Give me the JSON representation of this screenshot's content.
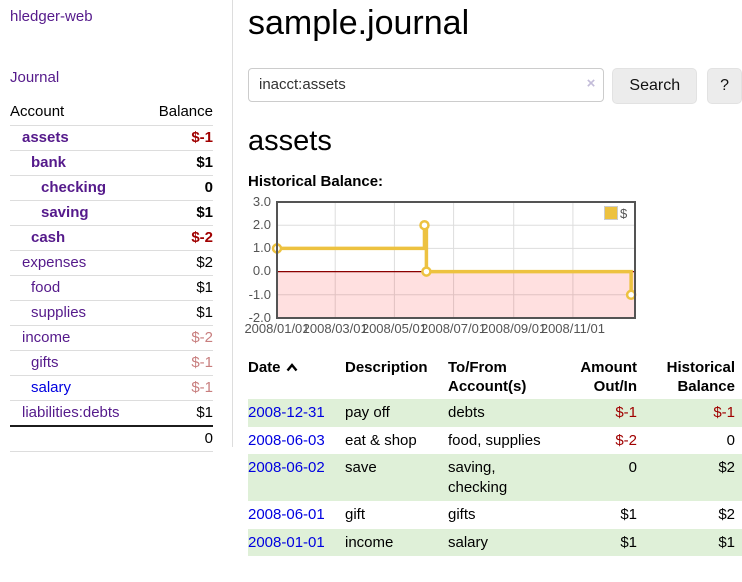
{
  "app": {
    "brand": "hledger-web"
  },
  "colors": {
    "link_purple": "#551a8b",
    "link_blue": "#0000e0",
    "negative_strong": "#a00000",
    "negative_muted": "#c87e7e",
    "row_green": "#dff0d8"
  },
  "sidebar": {
    "journal_link": "Journal",
    "accounts": {
      "header_account": "Account",
      "header_balance": "Balance",
      "rows": [
        {
          "account": "assets",
          "indent": 1,
          "bold": true,
          "link": "purple",
          "balance": "$-1",
          "negative": "strong"
        },
        {
          "account": "bank",
          "indent": 2,
          "bold": true,
          "link": "purple",
          "balance": "$1"
        },
        {
          "account": "checking",
          "indent": 3,
          "bold": true,
          "link": "purple",
          "balance": "0"
        },
        {
          "account": "saving",
          "indent": 3,
          "bold": true,
          "link": "purple",
          "balance": "$1"
        },
        {
          "account": "cash",
          "indent": 2,
          "bold": true,
          "link": "purple",
          "balance": "$-2",
          "negative": "strong"
        },
        {
          "account": "expenses",
          "indent": 1,
          "bold": false,
          "link": "purple",
          "balance": "$2"
        },
        {
          "account": "food",
          "indent": 2,
          "bold": false,
          "link": "purple",
          "balance": "$1"
        },
        {
          "account": "supplies",
          "indent": 2,
          "bold": false,
          "link": "purple",
          "balance": "$1"
        },
        {
          "account": "income",
          "indent": 1,
          "bold": false,
          "link": "purple",
          "balance": "$-2",
          "negative": "muted"
        },
        {
          "account": "gifts",
          "indent": 2,
          "bold": false,
          "link": "purple",
          "balance": "$-1",
          "negative": "muted"
        },
        {
          "account": "salary",
          "indent": 2,
          "bold": false,
          "link": "blue",
          "balance": "$-1",
          "negative": "muted"
        },
        {
          "account": "liabilities:debts",
          "indent": 1,
          "bold": false,
          "link": "purple",
          "balance": "$1"
        }
      ],
      "total": "0"
    }
  },
  "main": {
    "title": "sample.journal",
    "search": {
      "value": "inacct:assets",
      "clear": "×",
      "search_button": "Search",
      "help_button": "?"
    },
    "heading": "assets",
    "chart_label": "Historical Balance:",
    "register": {
      "headers": [
        "Date",
        "Description",
        "To/From Account(s)",
        "Amount Out/In",
        "Historical Balance"
      ],
      "rows": [
        {
          "date": "2008-12-31",
          "description": "pay off",
          "accounts": "debts",
          "amount": "$-1",
          "amount_neg": true,
          "balance": "$-1",
          "balance_neg": true
        },
        {
          "date": "2008-06-03",
          "description": "eat & shop",
          "accounts": "food, supplies",
          "amount": "$-2",
          "amount_neg": true,
          "balance": "0",
          "balance_neg": false
        },
        {
          "date": "2008-06-02",
          "description": "save",
          "accounts": "saving, checking",
          "amount": "0",
          "amount_neg": false,
          "balance": "$2",
          "balance_neg": false
        },
        {
          "date": "2008-06-01",
          "description": "gift",
          "accounts": "gifts",
          "amount": "$1",
          "amount_neg": false,
          "balance": "$2",
          "balance_neg": false
        },
        {
          "date": "2008-01-01",
          "description": "income",
          "accounts": "salary",
          "amount": "$1",
          "amount_neg": false,
          "balance": "$1",
          "balance_neg": false
        }
      ]
    }
  },
  "chart_data": {
    "type": "line",
    "style": "step",
    "title": "Historical Balance",
    "legend_label": "$",
    "legend_position": "top-right",
    "series": [
      {
        "name": "$",
        "x": [
          "2008-01-01",
          "2008-06-01",
          "2008-06-03",
          "2008-12-31"
        ],
        "values": [
          1,
          2,
          0,
          -1
        ]
      }
    ],
    "x_tick_labels": [
      "2008/01/01",
      "2008/03/01",
      "2008/05/01",
      "2008/07/01",
      "2008/09/01",
      "2008/11/01"
    ],
    "y_tick_labels": [
      "3.0",
      "2.0",
      "1.0",
      "0.0",
      "-1.0",
      "-2.0"
    ],
    "ylim": [
      -2,
      3
    ],
    "x_start": "2008-01-01",
    "x_span_days": 369,
    "grid": true,
    "negative_region_below": 0,
    "colors": {
      "series": "#edc240",
      "marker_fill": "#ffffff",
      "negative_region": "rgba(255,0,0,0.12)",
      "zero_line": "#8b0000",
      "grid": "#dddddd",
      "border": "#545454",
      "tick_text": "#545454"
    }
  }
}
